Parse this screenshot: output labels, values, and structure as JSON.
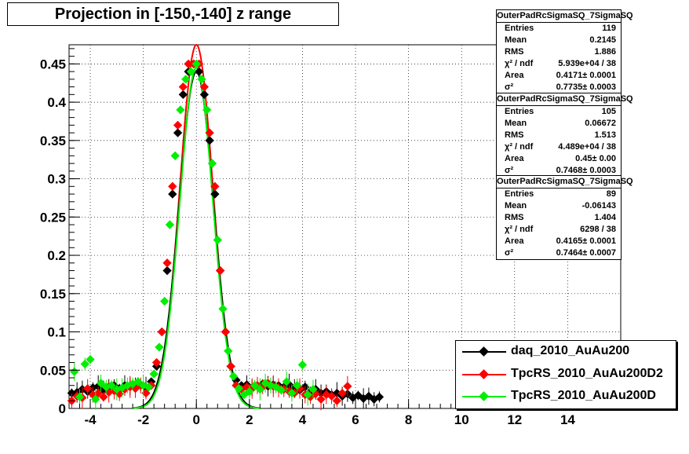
{
  "title": "Projection in [-150,-140] z range",
  "chart_data": {
    "type": "scatter",
    "xlim": [
      -4.8,
      16.0
    ],
    "ylim": [
      0,
      0.475
    ],
    "x_ticks": [
      "-4",
      "-2",
      "0",
      "2",
      "4",
      "6",
      "8",
      "10",
      "12",
      "14"
    ],
    "y_ticks": [
      "0",
      "0.05",
      "0.1",
      "0.15",
      "0.2",
      "0.25",
      "0.3",
      "0.35",
      "0.4",
      "0.45"
    ],
    "grid": true,
    "legend_position": "bottom-right",
    "series": [
      {
        "name": "daq_2010_AuAu200",
        "color": "#000000",
        "x": [
          -4.7,
          -4.5,
          -4.3,
          -4.1,
          -3.9,
          -3.7,
          -3.5,
          -3.3,
          -3.1,
          -2.9,
          -2.7,
          -2.5,
          -2.3,
          -2.1,
          -1.9,
          -1.7,
          -1.5,
          -1.3,
          -1.1,
          -0.9,
          -0.7,
          -0.5,
          -0.3,
          -0.1,
          0.1,
          0.3,
          0.5,
          0.7,
          0.9,
          1.1,
          1.3,
          1.5,
          1.7,
          1.9,
          2.1,
          2.3,
          2.5,
          2.7,
          2.9,
          3.1,
          3.3,
          3.5,
          3.7,
          3.9,
          4.1,
          4.3,
          4.5,
          4.7,
          4.9,
          5.1,
          5.3,
          5.5,
          5.7,
          5.9,
          6.1,
          6.3,
          6.5,
          6.7,
          6.9
        ],
        "values": [
          0.02,
          0.021,
          0.025,
          0.022,
          0.027,
          0.029,
          0.024,
          0.028,
          0.03,
          0.026,
          0.03,
          0.029,
          0.031,
          0.03,
          0.027,
          0.035,
          0.055,
          0.1,
          0.18,
          0.28,
          0.36,
          0.41,
          0.44,
          0.45,
          0.44,
          0.41,
          0.35,
          0.28,
          0.18,
          0.1,
          0.055,
          0.037,
          0.03,
          0.031,
          0.027,
          0.03,
          0.032,
          0.029,
          0.031,
          0.03,
          0.028,
          0.031,
          0.026,
          0.024,
          0.028,
          0.022,
          0.025,
          0.02,
          0.022,
          0.018,
          0.02,
          0.016,
          0.019,
          0.014,
          0.017,
          0.013,
          0.016,
          0.012,
          0.015
        ]
      },
      {
        "name": "TpcRS_2010_AuAu200D2",
        "color": "#ff0000",
        "x": [
          -4.7,
          -4.5,
          -4.3,
          -4.1,
          -3.9,
          -3.7,
          -3.5,
          -3.3,
          -3.1,
          -2.9,
          -2.7,
          -2.5,
          -2.3,
          -2.1,
          -1.9,
          -1.7,
          -1.5,
          -1.3,
          -1.1,
          -0.9,
          -0.7,
          -0.5,
          -0.3,
          -0.1,
          0.1,
          0.3,
          0.5,
          0.7,
          0.9,
          1.1,
          1.3,
          1.5,
          1.7,
          1.9,
          2.1,
          2.3,
          2.5,
          2.7,
          2.9,
          3.1,
          3.3,
          3.5,
          3.7,
          3.9,
          4.1,
          4.3,
          4.5,
          4.7,
          4.9,
          5.1,
          5.3,
          5.5,
          5.7
        ],
        "values": [
          0.01,
          0.016,
          0.014,
          0.026,
          0.018,
          0.02,
          0.015,
          0.021,
          0.023,
          0.019,
          0.025,
          0.028,
          0.026,
          0.03,
          0.02,
          0.03,
          0.06,
          0.1,
          0.19,
          0.29,
          0.37,
          0.42,
          0.45,
          0.45,
          0.45,
          0.42,
          0.36,
          0.29,
          0.18,
          0.1,
          0.055,
          0.03,
          0.025,
          0.028,
          0.026,
          0.03,
          0.028,
          0.033,
          0.029,
          0.027,
          0.025,
          0.022,
          0.02,
          0.026,
          0.018,
          0.015,
          0.019,
          0.012,
          0.018,
          0.016,
          0.01,
          0.02,
          0.029
        ]
      },
      {
        "name": "TpcRS_2010_AuAu200D",
        "color": "#00ee00",
        "x": [
          -4.6,
          -4.4,
          -4.2,
          -4.0,
          -3.8,
          -3.6,
          -3.4,
          -3.2,
          -3.0,
          -2.8,
          -2.6,
          -2.4,
          -2.2,
          -2.0,
          -1.8,
          -1.6,
          -1.4,
          -1.2,
          -1.0,
          -0.8,
          -0.6,
          -0.4,
          -0.2,
          0.0,
          0.2,
          0.4,
          0.6,
          0.8,
          1.0,
          1.2,
          1.4,
          1.6,
          1.8,
          2.0,
          2.2,
          2.4,
          2.6,
          2.8,
          3.0,
          3.2,
          3.4,
          3.6,
          3.8,
          4.0,
          4.2,
          4.4
        ],
        "values": [
          0.048,
          0.015,
          0.058,
          0.064,
          0.012,
          0.033,
          0.028,
          0.03,
          0.025,
          0.027,
          0.03,
          0.032,
          0.035,
          0.03,
          0.028,
          0.045,
          0.08,
          0.14,
          0.24,
          0.33,
          0.39,
          0.43,
          0.44,
          0.45,
          0.43,
          0.39,
          0.32,
          0.22,
          0.13,
          0.075,
          0.042,
          0.026,
          0.018,
          0.022,
          0.03,
          0.025,
          0.033,
          0.03,
          0.028,
          0.024,
          0.035,
          0.02,
          0.03,
          0.057,
          0.018,
          0.025
        ]
      }
    ],
    "fits": [
      {
        "series": "TpcRS_2010_AuAu200D2",
        "color": "#ff0000",
        "amplitude": 0.475,
        "sigma": 0.7468
      },
      {
        "series": "daq_2010_AuAu200",
        "color": "#000000",
        "amplitude": 0.44,
        "sigma": 0.7735
      },
      {
        "series": "TpcRS_2010_AuAu200D",
        "color": "#00ee00",
        "amplitude": 0.445,
        "sigma": 0.7464
      }
    ]
  },
  "stats_boxes": [
    {
      "title": "OuterPadRcSigmaSQ_7SigmaSQ",
      "rows": [
        {
          "label": "Entries",
          "value": "119"
        },
        {
          "label": "Mean",
          "value": "0.2145"
        },
        {
          "label": "RMS",
          "value": "1.886"
        },
        {
          "label": "χ² / ndf",
          "value": "5.939e+04 / 38"
        },
        {
          "label": "Area",
          "value": "0.4171± 0.0001"
        },
        {
          "label": "σ²",
          "value": "0.7735± 0.0003"
        }
      ]
    },
    {
      "title": "OuterPadRcSigmaSQ_7SigmaSQ",
      "rows": [
        {
          "label": "Entries",
          "value": "105"
        },
        {
          "label": "Mean",
          "value": "0.06672"
        },
        {
          "label": "RMS",
          "value": "1.513"
        },
        {
          "label": "χ² / ndf",
          "value": "4.489e+04 / 38"
        },
        {
          "label": "Area",
          "value": "0.45± 0.00"
        },
        {
          "label": "σ²",
          "value": "0.7468± 0.0003"
        }
      ]
    },
    {
      "title": "OuterPadRcSigmaSQ_7SigmaSQ",
      "rows": [
        {
          "label": "Entries",
          "value": "89"
        },
        {
          "label": "Mean",
          "value": "-0.06143"
        },
        {
          "label": "RMS",
          "value": "1.404"
        },
        {
          "label": "χ² / ndf",
          "value": "6298 / 38"
        },
        {
          "label": "Area",
          "value": "0.4165± 0.0001"
        },
        {
          "label": "σ²",
          "value": "0.7464± 0.0007"
        }
      ]
    }
  ],
  "legend": {
    "entries": [
      {
        "label": "daq_2010_AuAu200",
        "color": "#000000"
      },
      {
        "label": "TpcRS_2010_AuAu200D2",
        "color": "#ff0000"
      },
      {
        "label": "TpcRS_2010_AuAu200D",
        "color": "#00ee00"
      }
    ]
  }
}
